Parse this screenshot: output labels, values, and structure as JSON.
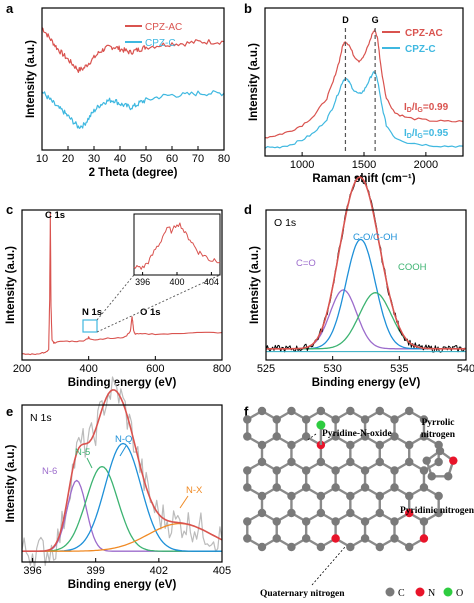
{
  "chart_data": [
    {
      "panel": "a",
      "type": "line",
      "xlabel": "2 Theta (degree)",
      "ylabel": "Intensity (a.u.)",
      "xlim": [
        10,
        80
      ],
      "xticks": [
        "10",
        "20",
        "30",
        "40",
        "50",
        "60",
        "70",
        "80"
      ],
      "legend": [
        "CPZ-AC",
        "CPZ-C"
      ],
      "legend_position": "top-right",
      "series": [
        {
          "name": "CPZ-AC",
          "color": "#d9534f",
          "x": [
            10,
            12,
            14,
            16,
            18,
            20,
            22,
            24,
            26,
            28,
            30,
            32,
            34,
            36,
            38,
            40,
            42,
            44,
            46,
            48,
            50,
            55,
            60,
            65,
            70,
            75,
            80
          ],
          "y": [
            0.94,
            0.9,
            0.86,
            0.82,
            0.79,
            0.76,
            0.73,
            0.7,
            0.71,
            0.74,
            0.77,
            0.8,
            0.82,
            0.83,
            0.83,
            0.82,
            0.81,
            0.8,
            0.81,
            0.82,
            0.83,
            0.84,
            0.85,
            0.85,
            0.86,
            0.86,
            0.86
          ]
        },
        {
          "name": "CPZ-C",
          "color": "#3fb8e0",
          "x": [
            10,
            12,
            14,
            16,
            18,
            20,
            22,
            24,
            26,
            28,
            30,
            32,
            34,
            36,
            38,
            40,
            42,
            44,
            46,
            48,
            50,
            55,
            60,
            65,
            70,
            75,
            80
          ],
          "y": [
            0.58,
            0.55,
            0.52,
            0.49,
            0.47,
            0.44,
            0.41,
            0.38,
            0.39,
            0.43,
            0.47,
            0.5,
            0.52,
            0.53,
            0.53,
            0.51,
            0.5,
            0.49,
            0.5,
            0.52,
            0.53,
            0.55,
            0.56,
            0.56,
            0.57,
            0.57,
            0.57
          ]
        }
      ]
    },
    {
      "panel": "b",
      "type": "line",
      "xlabel": "Raman shift (cm⁻¹)",
      "ylabel": "Intensity (a.u.)",
      "xlim": [
        700,
        2300
      ],
      "xticks": [
        "1000",
        "1500",
        "2000"
      ],
      "peak_labels": [
        "D",
        "G"
      ],
      "peaks_x": [
        1350,
        1590
      ],
      "legend": [
        "CPZ-AC",
        "CPZ-C"
      ],
      "legend_position": "top-right",
      "ratio_labels": [
        {
          "text": "I",
          "sub1": "D",
          "mid": "/I",
          "sub2": "G",
          "value": "=0.99",
          "color": "#d9534f"
        },
        {
          "text": "I",
          "sub1": "D",
          "mid": "/I",
          "sub2": "G",
          "value": "=0.95",
          "color": "#3fb8e0"
        }
      ],
      "series": [
        {
          "name": "CPZ-AC",
          "color": "#d9534f",
          "x": [
            700,
            800,
            900,
            1000,
            1100,
            1200,
            1250,
            1300,
            1330,
            1350,
            1380,
            1420,
            1460,
            1500,
            1540,
            1570,
            1590,
            1610,
            1640,
            1680,
            1750,
            1850,
            2000,
            2150,
            2300
          ],
          "y": [
            0.1,
            0.12,
            0.15,
            0.2,
            0.28,
            0.42,
            0.55,
            0.72,
            0.85,
            0.88,
            0.85,
            0.76,
            0.72,
            0.76,
            0.86,
            0.95,
            0.97,
            0.9,
            0.65,
            0.42,
            0.3,
            0.26,
            0.24,
            0.23,
            0.23
          ]
        },
        {
          "name": "CPZ-C",
          "color": "#3fb8e0",
          "x": [
            700,
            800,
            900,
            1000,
            1100,
            1200,
            1250,
            1300,
            1330,
            1350,
            1380,
            1420,
            1460,
            1500,
            1540,
            1570,
            1590,
            1610,
            1640,
            1680,
            1750,
            1850,
            2000,
            2150,
            2300
          ],
          "y": [
            0.02,
            0.02,
            0.04,
            0.08,
            0.14,
            0.25,
            0.35,
            0.48,
            0.56,
            0.58,
            0.55,
            0.48,
            0.45,
            0.48,
            0.56,
            0.62,
            0.63,
            0.56,
            0.38,
            0.2,
            0.1,
            0.06,
            0.04,
            0.03,
            0.03
          ]
        }
      ]
    },
    {
      "panel": "c",
      "type": "line",
      "xlabel": "Binding energy (eV)",
      "ylabel": "Intensity (a.u.)",
      "xlim": [
        200,
        800
      ],
      "xticks": [
        "200",
        "400",
        "600",
        "800"
      ],
      "annotations": [
        "C 1s",
        "N 1s",
        "O 1s"
      ],
      "series": [
        {
          "name": "",
          "color": "#d9534f",
          "x": [
            200,
            220,
            240,
            260,
            270,
            280,
            283,
            285,
            287,
            290,
            295,
            300,
            320,
            350,
            380,
            398,
            400,
            402,
            420,
            450,
            480,
            510,
            525,
            530,
            532,
            535,
            540,
            560,
            600,
            650,
            700,
            750,
            800
          ],
          "y": [
            0.02,
            0.02,
            0.02,
            0.03,
            0.03,
            0.05,
            0.4,
            1.0,
            0.35,
            0.12,
            0.1,
            0.1,
            0.11,
            0.11,
            0.11,
            0.13,
            0.14,
            0.13,
            0.12,
            0.13,
            0.13,
            0.14,
            0.18,
            0.28,
            0.25,
            0.18,
            0.16,
            0.16,
            0.16,
            0.16,
            0.17,
            0.17,
            0.17
          ]
        }
      ],
      "inset": {
        "xlim": [
          395,
          405
        ],
        "xticks": [
          "396",
          "400",
          "404"
        ],
        "x": [
          395,
          395.5,
          396,
          396.5,
          397,
          397.5,
          398,
          398.5,
          399,
          399.5,
          400,
          400.5,
          401,
          401.5,
          402,
          402.5,
          403,
          403.5,
          404,
          404.5,
          405
        ],
        "y": [
          0.1,
          0.15,
          0.12,
          0.2,
          0.3,
          0.45,
          0.55,
          0.72,
          0.8,
          0.75,
          0.9,
          0.85,
          0.7,
          0.62,
          0.5,
          0.4,
          0.35,
          0.3,
          0.25,
          0.28,
          0.22
        ]
      }
    },
    {
      "panel": "d",
      "type": "line",
      "title": "O 1s",
      "xlabel": "Binding energy (eV)",
      "ylabel": "Intensity (a.u.)",
      "xlim": [
        525,
        540
      ],
      "xticks": [
        "525",
        "530",
        "535",
        "540"
      ],
      "components": [
        {
          "name": "C=O",
          "color": "#9c6ccc",
          "center": 530.8,
          "height": 0.42,
          "width": 1.0
        },
        {
          "name": "C-O/C-OH",
          "color": "#1e90d8",
          "center": 532.1,
          "height": 0.78,
          "width": 1.1
        },
        {
          "name": "COOH",
          "color": "#3cb371",
          "center": 533.2,
          "height": 0.4,
          "width": 1.2
        }
      ],
      "envelope_color": "#d9534f",
      "raw_color": "#000000"
    },
    {
      "panel": "e",
      "type": "line",
      "title": "N 1s",
      "xlabel": "Binding energy (eV)",
      "ylabel": "Intensity (a.u.)",
      "xlim": [
        395.5,
        405
      ],
      "xticks": [
        "396",
        "399",
        "402",
        "405"
      ],
      "components": [
        {
          "name": "N-6",
          "color": "#9c6ccc",
          "center": 398.1,
          "height": 0.46,
          "width": 0.45
        },
        {
          "name": "N-5",
          "color": "#3cb371",
          "center": 399.3,
          "height": 0.55,
          "width": 0.75
        },
        {
          "name": "N-Q",
          "color": "#1e90d8",
          "center": 400.3,
          "height": 0.7,
          "width": 0.85
        },
        {
          "name": "N-X",
          "color": "#f08a24",
          "center": 403.0,
          "height": 0.18,
          "width": 1.5
        }
      ],
      "envelope_color": "#d9534f",
      "raw_color": "#bbbbbb"
    },
    {
      "panel": "f",
      "type": "diagram",
      "labels": [
        "Pyridine-N-oxide",
        "Pyrrolic nitrogen",
        "Pyridinic nitrogen",
        "Quaternary nitrogen"
      ],
      "legend": [
        {
          "symbol": "C",
          "color": "#7a7a7a"
        },
        {
          "symbol": "N",
          "color": "#e8142a"
        },
        {
          "symbol": "O",
          "color": "#2ecc40"
        }
      ]
    }
  ],
  "panels": {
    "a": {
      "letter": "a"
    },
    "b": {
      "letter": "b"
    },
    "c": {
      "letter": "c"
    },
    "d": {
      "letter": "d"
    },
    "e": {
      "letter": "e"
    },
    "f": {
      "letter": "f"
    }
  }
}
